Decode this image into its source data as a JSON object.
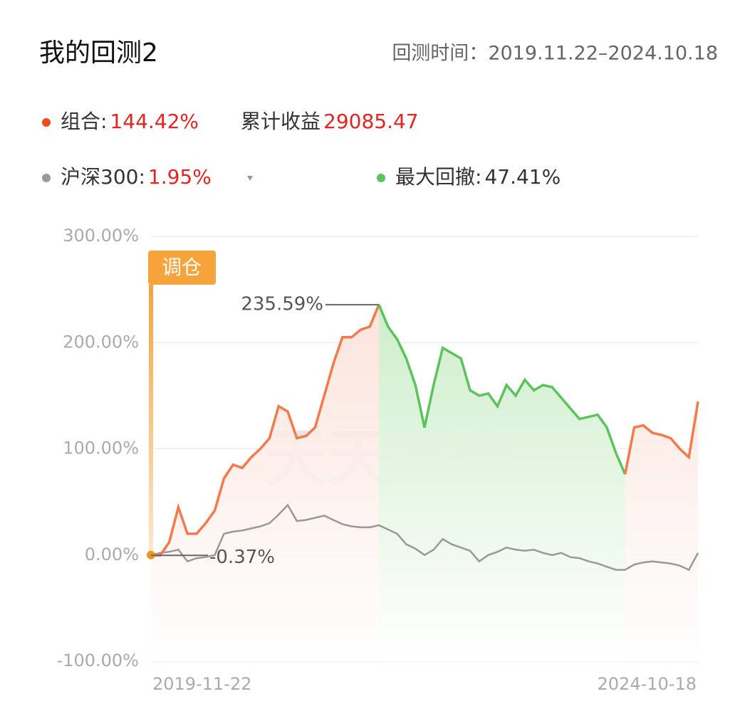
{
  "header": {
    "title": "我的回测2",
    "period_label": "回测时间：",
    "period": "2019.11.22–2024.10.18"
  },
  "chart_data": {
    "type": "line",
    "categories": [
      "2019-11-22",
      null,
      null,
      null,
      null,
      null,
      null,
      null,
      null,
      null,
      null,
      null,
      null,
      null,
      null,
      null,
      null,
      null,
      null,
      null,
      null,
      null,
      null,
      null,
      null,
      null,
      null,
      null,
      null,
      null,
      null,
      null,
      null,
      null,
      null,
      null,
      null,
      null,
      null,
      null,
      null,
      null,
      null,
      null,
      null,
      null,
      null,
      null,
      null,
      null,
      null,
      null,
      null,
      null,
      null,
      null,
      null,
      null,
      null,
      null,
      "2024-10-18"
    ],
    "series": [
      {
        "name": "组合:",
        "color": "#f5794a",
        "total": 144.42,
        "total_label": "144.42%",
        "values": [
          0,
          -0.37,
          12,
          45,
          20,
          20,
          30,
          42,
          72,
          85,
          82,
          92,
          100,
          110,
          140,
          135,
          110,
          112,
          120,
          150,
          180,
          205,
          205,
          212,
          215,
          235.59,
          215,
          203,
          185,
          160,
          120,
          160,
          195,
          190,
          185,
          155,
          150,
          152,
          140,
          160,
          150,
          165,
          155,
          160,
          158,
          148,
          138,
          128,
          130,
          132,
          120,
          96,
          76,
          120,
          122,
          115,
          113,
          110,
          100,
          92,
          144.42
        ],
        "value_labels": [
          null,
          "-0.37%",
          null,
          null,
          null,
          null,
          null,
          null,
          null,
          null,
          null,
          null,
          null,
          null,
          null,
          null,
          null,
          null,
          null,
          null,
          null,
          null,
          null,
          null,
          null,
          "235.59%",
          null,
          null,
          null,
          null,
          null,
          null,
          null,
          null,
          null,
          null,
          null,
          null,
          null,
          null,
          null,
          null,
          null,
          null,
          null,
          null,
          null,
          null,
          null,
          null,
          null,
          null,
          null,
          null,
          null,
          null,
          null,
          null,
          null,
          null,
          null
        ]
      },
      {
        "name": "沪深300:",
        "color": "#999999",
        "total": 1.95,
        "total_label": "1.95%",
        "values": [
          0,
          2,
          3,
          5,
          -6,
          -3,
          -2,
          0,
          20,
          22,
          23,
          25,
          27,
          30,
          38,
          47,
          32,
          33,
          35,
          37,
          33,
          29,
          27,
          26,
          26,
          28,
          24,
          20,
          10,
          6,
          0,
          5,
          15,
          10,
          7,
          4,
          -6,
          0,
          3,
          7,
          5,
          4,
          5,
          2,
          0,
          2,
          -2,
          -3,
          -6,
          -8,
          -11,
          -14,
          -14,
          -9,
          -7,
          -6,
          -7,
          -8,
          -10,
          -14,
          1.95
        ]
      }
    ],
    "cumulative_profit": {
      "label": "累计收益",
      "value": 29085.47
    },
    "max_drawdown": {
      "label": "最大回撤:",
      "value": 47.41,
      "value_label": "47.41%",
      "color": "#5cc45c"
    },
    "rebalance_label": "调仓",
    "watermark": "天天基金",
    "ylim": [
      -100,
      300
    ],
    "yticks": [
      {
        "value": -100,
        "label": "-100.00%"
      },
      {
        "value": 0,
        "label": "0.00%"
      },
      {
        "value": 100,
        "label": "100.00%"
      },
      {
        "value": 200,
        "label": "200.00%"
      },
      {
        "value": 300,
        "label": "300.00%"
      }
    ],
    "grid": true
  }
}
